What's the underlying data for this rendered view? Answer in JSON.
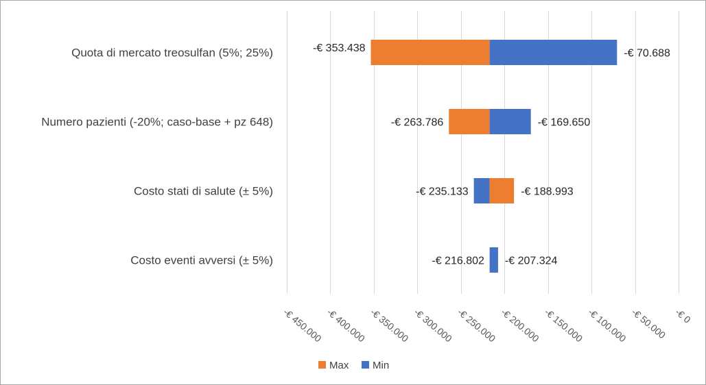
{
  "chart_data": {
    "type": "bar",
    "subtype": "tornado",
    "title": "",
    "base_value": -217000,
    "xlim": [
      -450000,
      0
    ],
    "x_ticks": [
      -450000,
      -400000,
      -350000,
      -300000,
      -250000,
      -200000,
      -150000,
      -100000,
      -50000,
      0
    ],
    "x_tick_labels": [
      "-€ 450.000",
      "-€ 400.000",
      "-€ 350.000",
      "-€ 300.000",
      "-€ 250.000",
      "-€ 200.000",
      "-€ 150.000",
      "-€ 100.000",
      "-€ 50.000",
      "-€ 0"
    ],
    "grid": true,
    "legend_position": "bottom",
    "colors": {
      "Max": "#ED7D31",
      "Min": "#4472C4"
    },
    "series": [
      {
        "name": "Max",
        "color": "#ED7D31"
      },
      {
        "name": "Min",
        "color": "#4472C4"
      }
    ],
    "categories": [
      {
        "label": "Quota di mercato treosulfan (5%; 25%)",
        "left": {
          "series": "Max",
          "value": -353438,
          "label": "-€ 353.438"
        },
        "right": {
          "series": "Min",
          "value": -70688,
          "label": "-€ 70.688"
        }
      },
      {
        "label": "Numero pazienti (-20%; caso-base + pz 648)",
        "left": {
          "series": "Max",
          "value": -263786,
          "label": "-€ 263.786"
        },
        "right": {
          "series": "Min",
          "value": -169650,
          "label": "-€ 169.650"
        }
      },
      {
        "label": "Costo stati di salute (± 5%)",
        "left": {
          "series": "Min",
          "value": -235133,
          "label": "-€ 235.133"
        },
        "right": {
          "series": "Max",
          "value": -188993,
          "label": "-€ 188.993"
        }
      },
      {
        "label": "Costo eventi avversi (± 5%)",
        "left": {
          "series": "Max",
          "value": -216802,
          "label": "-€ 216.802"
        },
        "right": {
          "series": "Min",
          "value": -207324,
          "label": "-€ 207.324"
        }
      }
    ]
  }
}
